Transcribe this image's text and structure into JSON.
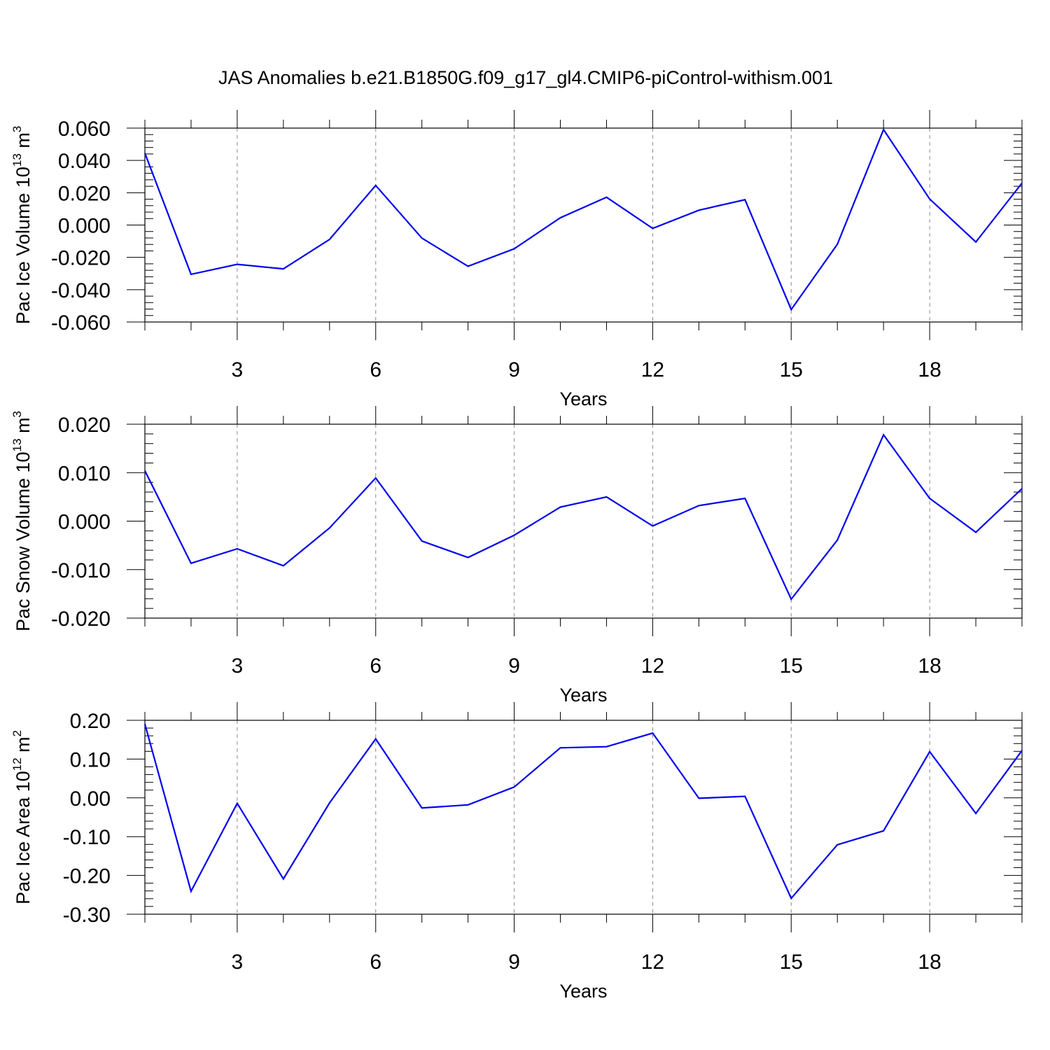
{
  "title": "JAS Anomalies b.e21.B1850G.f09_g17_gl4.CMIP6-piControl-withism.001",
  "colors": {
    "line": "#0000ee",
    "grid": "#888888",
    "axis": "#000000"
  },
  "chart_data": [
    {
      "type": "line",
      "title": "JAS Anomalies b.e21.B1850G.f09_g17_gl4.CMIP6-piControl-withism.001",
      "xlabel": "Years",
      "ylabel": {
        "base": "Pac Ice Volume 10",
        "sup1": "13",
        "unit": " m",
        "sup2": "3"
      },
      "xlim": [
        1,
        20
      ],
      "ylim": [
        -0.06,
        0.06
      ],
      "x_ticks": [
        "3",
        "6",
        "9",
        "12",
        "15",
        "18"
      ],
      "y_ticks": [
        "0.060",
        "0.040",
        "0.020",
        "0.000",
        "-0.020",
        "-0.040",
        "-0.060"
      ],
      "y_tick_values": [
        0.06,
        0.04,
        0.02,
        0.0,
        -0.02,
        -0.04,
        -0.06
      ],
      "grid": "vertical dashed at labeled x ticks",
      "x": [
        1,
        2,
        3,
        4,
        5,
        6,
        7,
        8,
        9,
        10,
        11,
        12,
        13,
        14,
        15,
        16,
        17,
        18,
        19,
        20
      ],
      "series": [
        {
          "name": "Pac Ice Volume",
          "values": [
            0.0445,
            -0.0305,
            -0.0243,
            -0.0271,
            -0.0089,
            0.0245,
            -0.0081,
            -0.0255,
            -0.0147,
            0.0045,
            0.0172,
            -0.0021,
            0.0092,
            0.0157,
            -0.0523,
            -0.0119,
            0.0591,
            0.0161,
            -0.0105,
            0.026
          ]
        }
      ]
    },
    {
      "type": "line",
      "xlabel": "Years",
      "ylabel": {
        "base": "Pac Snow Volume 10",
        "sup1": "13",
        "unit": " m",
        "sup2": "3"
      },
      "xlim": [
        1,
        20
      ],
      "ylim": [
        -0.02,
        0.02
      ],
      "x_ticks": [
        "3",
        "6",
        "9",
        "12",
        "15",
        "18"
      ],
      "y_ticks": [
        "0.020",
        "0.010",
        "0.000",
        "-0.010",
        "-0.020"
      ],
      "y_tick_values": [
        0.02,
        0.01,
        0.0,
        -0.01,
        -0.02
      ],
      "grid": "vertical dashed at labeled x ticks",
      "x": [
        1,
        2,
        3,
        4,
        5,
        6,
        7,
        8,
        9,
        10,
        11,
        12,
        13,
        14,
        15,
        16,
        17,
        18,
        19,
        20
      ],
      "series": [
        {
          "name": "Pac Snow Volume",
          "values": [
            0.0104,
            -0.0087,
            -0.0057,
            -0.0092,
            -0.0014,
            0.0089,
            -0.0041,
            -0.0075,
            -0.0029,
            0.0029,
            0.005,
            -0.001,
            0.0032,
            0.0047,
            -0.0161,
            -0.0039,
            0.0178,
            0.0047,
            -0.0023,
            0.0067
          ]
        }
      ]
    },
    {
      "type": "line",
      "xlabel": "Years",
      "ylabel": {
        "base": "Pac Ice Area 10",
        "sup1": "12",
        "unit": " m",
        "sup2": "2"
      },
      "xlim": [
        1,
        20
      ],
      "ylim": [
        -0.3,
        0.2
      ],
      "x_ticks": [
        "3",
        "6",
        "9",
        "12",
        "15",
        "18"
      ],
      "y_ticks": [
        "0.20",
        "0.10",
        "0.00",
        "-0.10",
        "-0.20",
        "-0.30"
      ],
      "y_tick_values": [
        0.2,
        0.1,
        0.0,
        -0.1,
        -0.2,
        -0.3
      ],
      "grid": "vertical dashed at labeled x ticks",
      "x": [
        1,
        2,
        3,
        4,
        5,
        6,
        7,
        8,
        9,
        10,
        11,
        12,
        13,
        14,
        15,
        16,
        17,
        18,
        19,
        20
      ],
      "series": [
        {
          "name": "Pac Ice Area",
          "values": [
            0.19,
            -0.241,
            -0.014,
            -0.209,
            -0.013,
            0.152,
            -0.026,
            -0.018,
            0.028,
            0.129,
            0.132,
            0.167,
            -0.001,
            0.004,
            -0.259,
            -0.121,
            -0.085,
            0.119,
            -0.04,
            0.122
          ]
        }
      ]
    }
  ]
}
